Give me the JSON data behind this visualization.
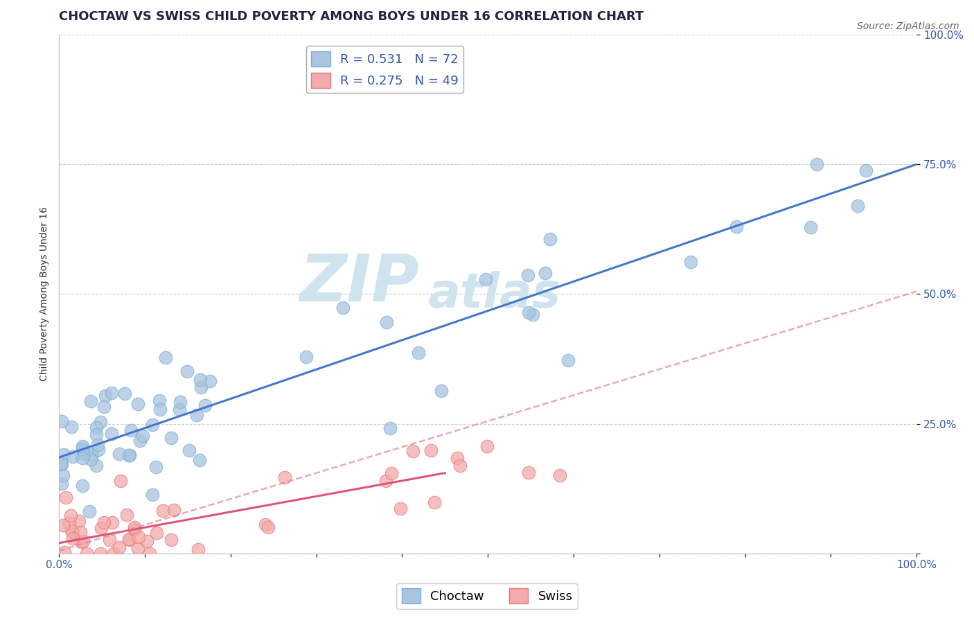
{
  "title": "CHOCTAW VS SWISS CHILD POVERTY AMONG BOYS UNDER 16 CORRELATION CHART",
  "source": "Source: ZipAtlas.com",
  "ylabel": "Child Poverty Among Boys Under 16",
  "choctaw_R": 0.531,
  "choctaw_N": 72,
  "swiss_R": 0.275,
  "swiss_N": 49,
  "choctaw_color": "#A8C4E0",
  "swiss_color": "#F4AAAA",
  "choctaw_edge_color": "#7BAFD4",
  "swiss_edge_color": "#E87878",
  "choctaw_line_color": "#4477CC",
  "swiss_line_solid_color": "#DD5577",
  "swiss_line_dash_color": "#DD8899",
  "background_color": "#FFFFFF",
  "grid_color": "#CCCCCC",
  "watermark_ZIP": "ZIP",
  "watermark_atlas": "atlas",
  "watermark_color": "#D0E4F0",
  "xlim": [
    0.0,
    1.0
  ],
  "ylim": [
    0.0,
    1.0
  ],
  "choctaw_intercept": 0.185,
  "choctaw_slope": 0.565,
  "swiss_intercept": 0.02,
  "swiss_slope": 0.3,
  "swiss_dash_intercept": 0.005,
  "swiss_dash_slope": 0.5,
  "title_fontsize": 13,
  "axis_label_fontsize": 10,
  "tick_fontsize": 11,
  "legend_fontsize": 13,
  "source_fontsize": 10
}
